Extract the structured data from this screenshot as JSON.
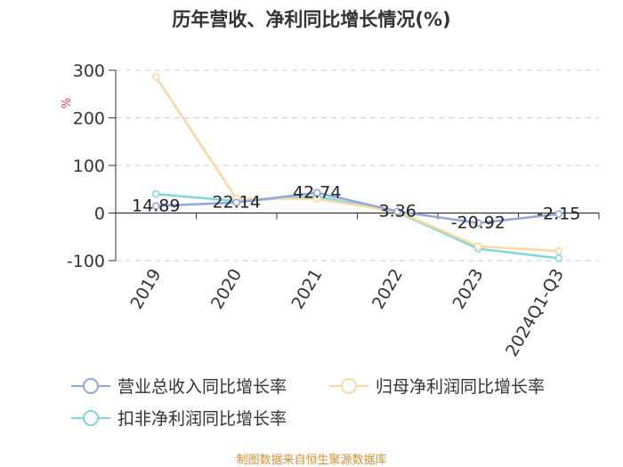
{
  "chart_data": {
    "type": "line",
    "title": "历年营收、净利同比增长情况(%)",
    "ylabel": "%",
    "categories": [
      "2019",
      "2020",
      "2021",
      "2022",
      "2023",
      "2024Q1-Q3"
    ],
    "ylim": [
      -100,
      300
    ],
    "yticks": [
      "300",
      "200",
      "100",
      "0",
      "-100"
    ],
    "grid": true,
    "legend_position": "bottom",
    "series": [
      {
        "name": "营业总收入同比增长率",
        "values": [
          14.89,
          22.14,
          42.74,
          3.36,
          -20.92,
          -2.15
        ],
        "labels": [
          "14.89",
          "22.14",
          "42.74",
          "3.36",
          "-20.92",
          "-2.15"
        ],
        "color": "#8fa7dc"
      },
      {
        "name": "归母净利润同比增长率",
        "values": [
          286,
          30,
          30,
          3,
          -70,
          -80
        ],
        "color": "#f7d8a0"
      },
      {
        "name": "扣非净利润同比增长率",
        "values": [
          40,
          25,
          35,
          2,
          -75,
          -95
        ],
        "color": "#80d6d6"
      }
    ]
  },
  "source": "制图数据来自恒生聚源数据库"
}
